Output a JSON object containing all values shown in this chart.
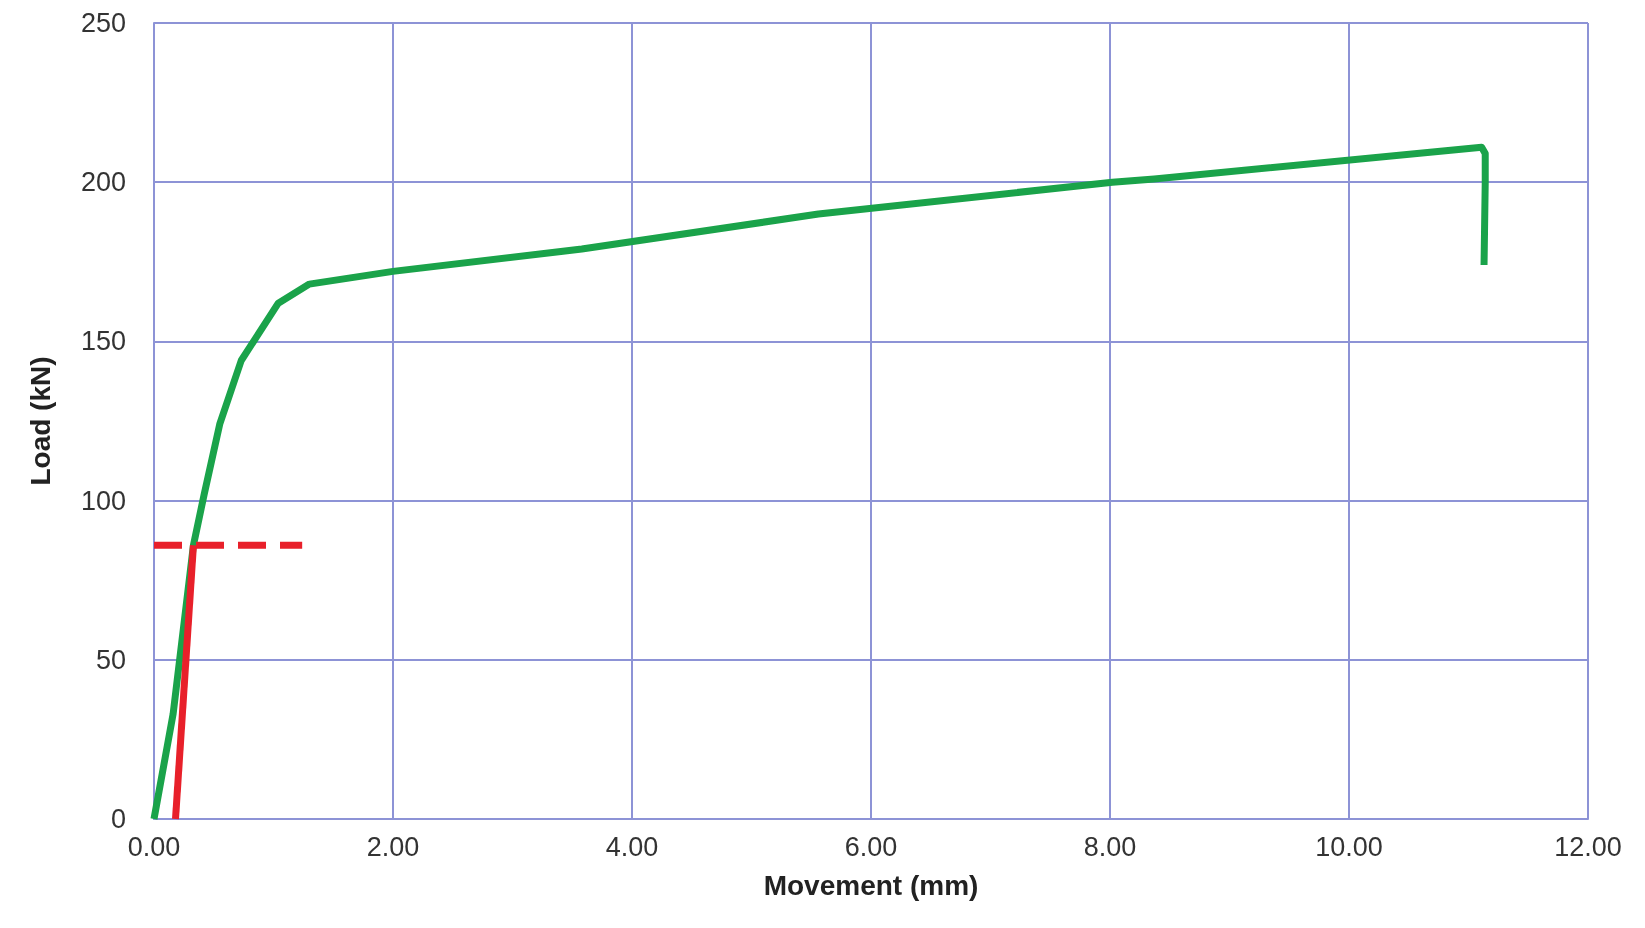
{
  "chart_data": {
    "type": "line",
    "xlabel": "Movement (mm)",
    "ylabel": "Load (kN)",
    "xlim": [
      0,
      12
    ],
    "xticks": [
      {
        "value": 0,
        "label": "0.00"
      },
      {
        "value": 2,
        "label": "2.00"
      },
      {
        "value": 4,
        "label": "4.00"
      },
      {
        "value": 6,
        "label": "6.00"
      },
      {
        "value": 8,
        "label": "8.00"
      },
      {
        "value": 10,
        "label": "10.00"
      },
      {
        "value": 12,
        "label": "12.00"
      }
    ],
    "ylim": [
      0,
      250
    ],
    "yticks": [
      0,
      50,
      100,
      150,
      200,
      250
    ],
    "grid": true,
    "marker": "none",
    "series": [
      {
        "color": "#1aa34a",
        "line_style": "solid",
        "x": [
          0,
          0.16,
          0.33,
          0.42,
          0.55,
          0.73,
          1.04,
          1.3,
          2.0,
          3.58,
          5.56,
          8.02,
          8.37,
          11.11,
          11.14,
          11.14,
          11.13
        ],
        "values": [
          0,
          33,
          86,
          102,
          124,
          144,
          162,
          168,
          172,
          179,
          190,
          200,
          201,
          211,
          209,
          200,
          174
        ]
      },
      {
        "color": "#e8202a",
        "line_style": "solid",
        "x": [
          0.18,
          0.33
        ],
        "values": [
          0,
          86
        ]
      },
      {
        "color": "#e8202a",
        "line_style": "dashed",
        "x": [
          0,
          1.24
        ],
        "values": [
          86,
          86
        ]
      }
    ]
  }
}
